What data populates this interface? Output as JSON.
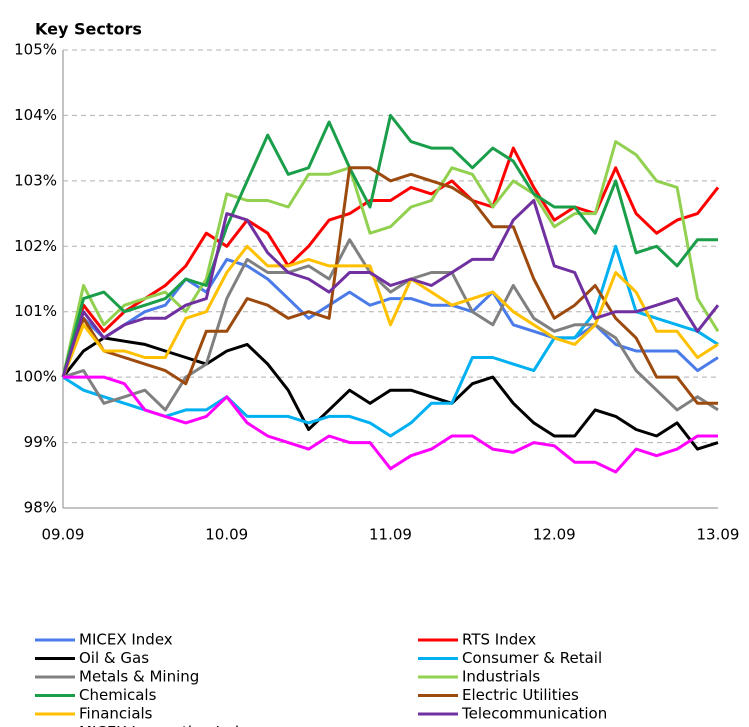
{
  "chart_data": {
    "type": "line",
    "title": "Key Sectors",
    "categories": [
      "09.09",
      null,
      null,
      null,
      null,
      null,
      null,
      null,
      "10.09",
      null,
      null,
      null,
      null,
      null,
      null,
      null,
      "11.09",
      null,
      null,
      null,
      null,
      null,
      null,
      null,
      "12.09",
      null,
      null,
      null,
      null,
      null,
      null,
      null,
      "13.09"
    ],
    "ylim": [
      98,
      105
    ],
    "yticks": [
      {
        "value": 98,
        "label": "98%"
      },
      {
        "value": 99,
        "label": "99%"
      },
      {
        "value": 100,
        "label": "100%"
      },
      {
        "value": 101,
        "label": "101%"
      },
      {
        "value": 102,
        "label": "102%"
      },
      {
        "value": 103,
        "label": "103%"
      },
      {
        "value": 104,
        "label": "104%"
      },
      {
        "value": 105,
        "label": "105%"
      }
    ],
    "grid": true,
    "series": [
      {
        "name": "MICEX Index",
        "color": "#4a7be8",
        "values": [
          100,
          100.9,
          100.6,
          100.8,
          101.0,
          101.1,
          101.5,
          101.3,
          101.8,
          101.7,
          101.5,
          101.2,
          100.9,
          101.1,
          101.3,
          101.1,
          101.2,
          101.2,
          101.1,
          101.1,
          101.0,
          101.3,
          100.8,
          100.7,
          100.6,
          100.6,
          100.8,
          100.5,
          100.4,
          100.4,
          100.4,
          100.1,
          100.3
        ]
      },
      {
        "name": "RTS Index",
        "color": "#ff0000",
        "values": [
          100,
          101.1,
          100.7,
          101.0,
          101.2,
          101.4,
          101.7,
          102.2,
          102.0,
          102.4,
          102.2,
          101.7,
          102.0,
          102.4,
          102.5,
          102.7,
          102.7,
          102.9,
          102.8,
          103.0,
          102.7,
          102.6,
          103.5,
          102.9,
          102.4,
          102.6,
          102.5,
          103.2,
          102.5,
          102.2,
          102.4,
          102.5,
          102.9
        ]
      },
      {
        "name": "Oil & Gas",
        "color": "#000000",
        "values": [
          100,
          100.4,
          100.6,
          100.55,
          100.5,
          100.4,
          100.3,
          100.2,
          100.4,
          100.5,
          100.2,
          99.8,
          99.2,
          99.5,
          99.8,
          99.6,
          99.8,
          99.8,
          99.7,
          99.6,
          99.9,
          100.0,
          99.6,
          99.3,
          99.1,
          99.1,
          99.5,
          99.4,
          99.2,
          99.1,
          99.3,
          98.9,
          99.0
        ]
      },
      {
        "name": "Consumer & Retail",
        "color": "#00b0f0",
        "values": [
          100,
          99.8,
          99.7,
          99.6,
          99.5,
          99.4,
          99.5,
          99.5,
          99.7,
          99.4,
          99.4,
          99.4,
          99.3,
          99.4,
          99.4,
          99.3,
          99.1,
          99.3,
          99.6,
          99.6,
          100.3,
          100.3,
          100.2,
          100.1,
          100.6,
          100.6,
          101.0,
          102.0,
          101.0,
          100.9,
          100.8,
          100.7,
          100.5
        ]
      },
      {
        "name": "Metals & Mining",
        "color": "#808080",
        "values": [
          100,
          100.1,
          99.6,
          99.7,
          99.8,
          99.5,
          100.0,
          100.2,
          101.2,
          101.8,
          101.6,
          101.6,
          101.7,
          101.5,
          102.1,
          101.6,
          101.3,
          101.5,
          101.6,
          101.6,
          101.0,
          100.8,
          101.4,
          100.9,
          100.7,
          100.8,
          100.8,
          100.6,
          100.1,
          99.8,
          99.5,
          99.7,
          99.5
        ]
      },
      {
        "name": "Industrials",
        "color": "#92d050",
        "values": [
          100,
          101.4,
          100.8,
          101.1,
          101.2,
          101.3,
          101.0,
          101.5,
          102.8,
          102.7,
          102.7,
          102.6,
          103.1,
          103.1,
          103.2,
          102.2,
          102.3,
          102.6,
          102.7,
          103.2,
          103.1,
          102.6,
          103.0,
          102.8,
          102.3,
          102.5,
          102.5,
          103.6,
          103.4,
          103.0,
          102.9,
          101.2,
          100.7
        ]
      },
      {
        "name": "Chemicals",
        "color": "#1a9e4a",
        "values": [
          100,
          101.2,
          101.3,
          101.0,
          101.1,
          101.2,
          101.5,
          101.4,
          102.3,
          103.0,
          103.7,
          103.1,
          103.2,
          103.9,
          103.2,
          102.6,
          104.0,
          103.6,
          103.5,
          103.5,
          103.2,
          103.5,
          103.3,
          102.8,
          102.6,
          102.6,
          102.2,
          103.0,
          101.9,
          102.0,
          101.7,
          102.1,
          102.1
        ]
      },
      {
        "name": "Electric Utilities",
        "color": "#9c4a0e",
        "values": [
          100,
          100.9,
          100.4,
          100.3,
          100.2,
          100.1,
          99.9,
          100.7,
          100.7,
          101.2,
          101.1,
          100.9,
          101.0,
          100.9,
          103.2,
          103.2,
          103.0,
          103.1,
          103.0,
          102.9,
          102.7,
          102.3,
          102.3,
          101.5,
          100.9,
          101.1,
          101.4,
          100.9,
          100.6,
          100.0,
          100.0,
          99.6,
          99.6
        ]
      },
      {
        "name": "Financials",
        "color": "#ffc000",
        "values": [
          100,
          100.8,
          100.4,
          100.4,
          100.3,
          100.3,
          100.9,
          101.0,
          101.6,
          102.0,
          101.7,
          101.7,
          101.8,
          101.7,
          101.7,
          101.7,
          100.8,
          101.5,
          101.3,
          101.1,
          101.2,
          101.3,
          101.0,
          100.8,
          100.6,
          100.5,
          100.8,
          101.6,
          101.3,
          100.7,
          100.7,
          100.3,
          100.5
        ]
      },
      {
        "name": "Telecommunication",
        "color": "#7030a0",
        "values": [
          100,
          101.0,
          100.6,
          100.8,
          100.9,
          100.9,
          101.1,
          101.2,
          102.5,
          102.4,
          101.9,
          101.6,
          101.5,
          101.3,
          101.6,
          101.6,
          101.4,
          101.5,
          101.4,
          101.6,
          101.8,
          101.8,
          102.4,
          102.7,
          101.7,
          101.6,
          100.9,
          101.0,
          101.0,
          101.1,
          101.2,
          100.7,
          101.1
        ]
      },
      {
        "name": "MICEX Innovation Index",
        "color": "#ff00ff",
        "values": [
          100,
          100.0,
          100.0,
          99.9,
          99.5,
          99.4,
          99.3,
          99.4,
          99.7,
          99.3,
          99.1,
          99.0,
          98.9,
          99.1,
          99.0,
          99.0,
          98.6,
          98.8,
          98.9,
          99.1,
          99.1,
          98.9,
          98.85,
          99.0,
          98.95,
          98.7,
          98.7,
          98.55,
          98.9,
          98.8,
          98.9,
          99.1,
          99.1
        ]
      }
    ]
  }
}
